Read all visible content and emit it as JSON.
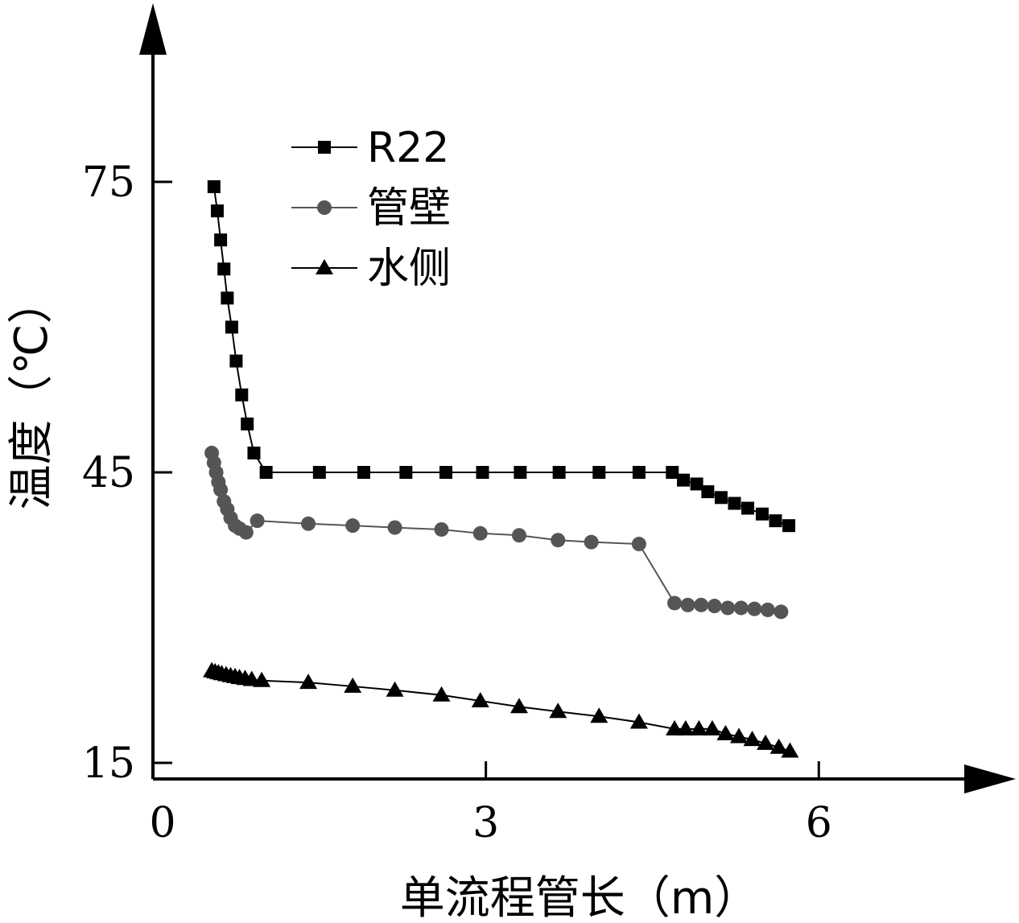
{
  "chart_data": {
    "type": "line",
    "xlabel": "单流程管长（m）",
    "ylabel": "温度（℃）",
    "xlim": [
      0,
      6.6
    ],
    "ylim": [
      13.5,
      80
    ],
    "x_ticks": [
      "0",
      "3",
      "6"
    ],
    "y_ticks": [
      "15",
      "45",
      "75"
    ],
    "grid": false,
    "legend_position": "top-left",
    "series": [
      {
        "name": "R22",
        "marker": "square",
        "color": "#000000",
        "x": [
          0.55,
          0.58,
          0.61,
          0.64,
          0.67,
          0.71,
          0.75,
          0.8,
          0.85,
          0.91,
          1.02,
          1.5,
          1.9,
          2.28,
          2.64,
          2.97,
          3.31,
          3.66,
          4.02,
          4.38,
          4.68,
          4.78,
          4.9,
          5.0,
          5.12,
          5.24,
          5.36,
          5.49,
          5.61,
          5.73
        ],
        "values": [
          74.5,
          72.0,
          69.0,
          66.0,
          63.0,
          60.0,
          56.5,
          53.0,
          50.0,
          47.0,
          45.0,
          45.0,
          45.0,
          45.0,
          45.0,
          45.0,
          45.0,
          45.0,
          45.0,
          45.0,
          45.0,
          44.2,
          43.8,
          43.0,
          42.4,
          41.8,
          41.3,
          40.7,
          40.0,
          39.5
        ]
      },
      {
        "name": "管壁",
        "marker": "circle",
        "color": "#555555",
        "x": [
          0.53,
          0.55,
          0.57,
          0.59,
          0.61,
          0.64,
          0.67,
          0.7,
          0.74,
          0.78,
          0.84,
          0.94,
          1.4,
          1.8,
          2.18,
          2.6,
          2.95,
          3.3,
          3.65,
          3.95,
          4.38,
          4.7,
          4.82,
          4.94,
          5.06,
          5.18,
          5.3,
          5.42,
          5.54,
          5.66
        ],
        "values": [
          47.0,
          46.0,
          45.0,
          44.0,
          43.2,
          42.0,
          41.2,
          40.3,
          39.5,
          39.2,
          38.8,
          40.0,
          39.7,
          39.5,
          39.3,
          39.1,
          38.7,
          38.5,
          38.0,
          37.8,
          37.6,
          31.5,
          31.3,
          31.3,
          31.2,
          31.0,
          31.0,
          30.9,
          30.8,
          30.6
        ]
      },
      {
        "name": "水侧",
        "marker": "triangle",
        "color": "#000000",
        "x": [
          0.53,
          0.56,
          0.59,
          0.62,
          0.66,
          0.7,
          0.74,
          0.78,
          0.83,
          0.89,
          0.98,
          1.4,
          1.8,
          2.18,
          2.6,
          2.95,
          3.3,
          3.65,
          4.02,
          4.38,
          4.7,
          4.8,
          4.92,
          5.04,
          5.16,
          5.28,
          5.4,
          5.52,
          5.64,
          5.74
        ],
        "values": [
          24.5,
          24.4,
          24.3,
          24.2,
          24.1,
          24.0,
          23.9,
          23.8,
          23.7,
          23.6,
          23.5,
          23.3,
          22.9,
          22.5,
          22.0,
          21.4,
          20.8,
          20.3,
          19.8,
          19.2,
          18.5,
          18.5,
          18.5,
          18.5,
          18.0,
          17.7,
          17.4,
          17.0,
          16.6,
          16.2
        ]
      }
    ]
  }
}
